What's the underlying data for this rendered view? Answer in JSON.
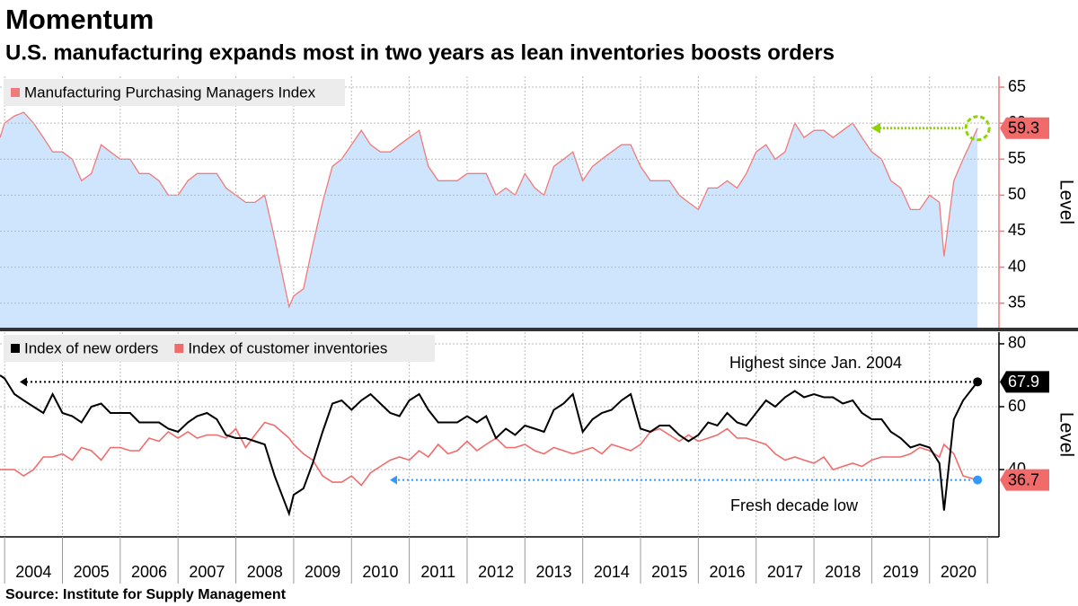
{
  "chart_data": [
    {
      "type": "area",
      "title": "Momentum",
      "subtitle": "U.S. manufacturing expands most in two years as lean inventories boosts orders",
      "source": "Source: Institute for Supply Management",
      "ylabel": "Level",
      "xlim": [
        2003.92,
        2021.2
      ],
      "ylim": [
        31.6,
        66.5
      ],
      "yticks": [
        35,
        40,
        45,
        50,
        55,
        60,
        65
      ],
      "grid": true,
      "x": [
        2003.92,
        2004.0,
        2004.17,
        2004.33,
        2004.5,
        2004.67,
        2004.83,
        2005.0,
        2005.17,
        2005.33,
        2005.5,
        2005.67,
        2005.83,
        2006.0,
        2006.17,
        2006.33,
        2006.5,
        2006.67,
        2006.83,
        2007.0,
        2007.17,
        2007.33,
        2007.5,
        2007.67,
        2007.83,
        2008.0,
        2008.17,
        2008.33,
        2008.5,
        2008.67,
        2008.92,
        2009.0,
        2009.17,
        2009.33,
        2009.5,
        2009.67,
        2009.83,
        2010.0,
        2010.17,
        2010.33,
        2010.5,
        2010.67,
        2010.83,
        2011.0,
        2011.17,
        2011.33,
        2011.5,
        2011.67,
        2011.83,
        2012.0,
        2012.17,
        2012.33,
        2012.5,
        2012.67,
        2012.83,
        2013.0,
        2013.17,
        2013.33,
        2013.5,
        2013.67,
        2013.83,
        2014.0,
        2014.17,
        2014.33,
        2014.5,
        2014.67,
        2014.83,
        2015.0,
        2015.17,
        2015.33,
        2015.5,
        2015.67,
        2015.83,
        2016.0,
        2016.17,
        2016.33,
        2016.5,
        2016.67,
        2016.83,
        2017.0,
        2017.17,
        2017.33,
        2017.5,
        2017.67,
        2017.83,
        2018.0,
        2018.17,
        2018.33,
        2018.5,
        2018.67,
        2018.83,
        2019.0,
        2019.17,
        2019.33,
        2019.5,
        2019.67,
        2019.83,
        2020.0,
        2020.17,
        2020.25,
        2020.42,
        2020.58,
        2020.83
      ],
      "series": [
        {
          "name": "Manufacturing Purchasing Managers Index",
          "color": "#f07b7b",
          "fill": "#cfe5fd",
          "values": [
            58,
            60,
            61,
            61.5,
            60,
            58,
            56,
            56,
            55,
            52,
            53,
            57,
            56,
            55,
            55,
            53,
            53,
            52,
            50,
            50,
            52,
            53,
            53,
            53,
            51,
            50,
            49,
            49,
            50,
            44,
            34.5,
            36,
            37,
            43,
            49,
            54,
            55,
            57,
            59,
            57,
            56,
            56,
            57,
            58,
            59,
            54,
            52,
            52,
            52,
            53,
            53,
            53,
            50,
            51,
            50,
            53,
            51,
            50,
            54,
            55,
            56,
            52,
            54,
            55,
            56,
            57,
            57,
            54,
            52,
            52,
            52,
            50,
            49,
            48,
            51,
            51,
            52,
            51,
            53,
            56,
            57,
            55,
            56,
            60,
            58,
            59,
            59,
            58,
            59,
            60,
            58,
            56,
            55,
            52,
            51,
            48,
            48,
            50,
            49,
            41.5,
            52,
            55,
            59.3
          ]
        }
      ]
    },
    {
      "type": "line",
      "ylabel": "Level",
      "xlim": [
        2003.92,
        2021.2
      ],
      "ylim": [
        18.6,
        83.7
      ],
      "yticks": [
        40,
        60,
        80
      ],
      "xticks": [
        2004,
        2005,
        2006,
        2007,
        2008,
        2009,
        2010,
        2011,
        2012,
        2013,
        2014,
        2015,
        2016,
        2017,
        2018,
        2019,
        2020
      ],
      "grid": true,
      "annotations": [
        "Highest since Jan. 2004",
        "Fresh decade low"
      ],
      "series": [
        {
          "name": "Index of new orders",
          "color": "#000000",
          "values": [
            70,
            69,
            64,
            62,
            60,
            58,
            64,
            58,
            57,
            55,
            60,
            61,
            58,
            58,
            58,
            55,
            55,
            55,
            53,
            52,
            55,
            57,
            58,
            56,
            51,
            50,
            50,
            49,
            48,
            38,
            26,
            32,
            34,
            42,
            52,
            61,
            62,
            59,
            62,
            64,
            61,
            58,
            57,
            62,
            64,
            59,
            55,
            55,
            55,
            57,
            55,
            57,
            50,
            53,
            51,
            54,
            53,
            52,
            59,
            61,
            64,
            52,
            56,
            58,
            59,
            62,
            64,
            53,
            52,
            54,
            54,
            51,
            49,
            51,
            55,
            54,
            58,
            55,
            54,
            58,
            62,
            60,
            63,
            65,
            63,
            64,
            63,
            63,
            61,
            62,
            58,
            56,
            56,
            52,
            50,
            47,
            48,
            47,
            42,
            27,
            56,
            62,
            67.9
          ]
        },
        {
          "name": "Index of customer inventories",
          "color": "#f26b6b",
          "values": [
            40,
            40,
            40,
            38,
            40,
            44,
            44,
            45,
            43,
            47,
            46,
            43,
            47,
            47,
            46,
            46,
            50,
            49,
            52,
            50,
            52,
            50,
            51,
            51,
            50,
            53,
            47,
            51,
            55,
            54,
            50,
            48,
            45,
            43,
            38,
            36,
            36,
            38,
            35,
            39,
            41,
            43,
            44,
            43,
            46,
            44,
            48,
            45,
            46,
            49,
            46,
            48,
            50,
            47,
            47,
            48,
            46,
            45,
            47,
            46,
            45,
            46,
            47,
            45,
            48,
            47,
            46,
            48,
            52,
            53,
            51,
            49,
            51,
            49,
            50,
            51,
            53,
            50,
            50,
            49,
            48,
            45,
            43,
            44,
            43,
            42,
            44,
            40,
            41,
            42,
            41,
            43,
            44,
            44,
            44,
            45,
            47,
            46,
            44,
            48,
            45,
            38,
            36.7
          ]
        }
      ]
    }
  ]
}
